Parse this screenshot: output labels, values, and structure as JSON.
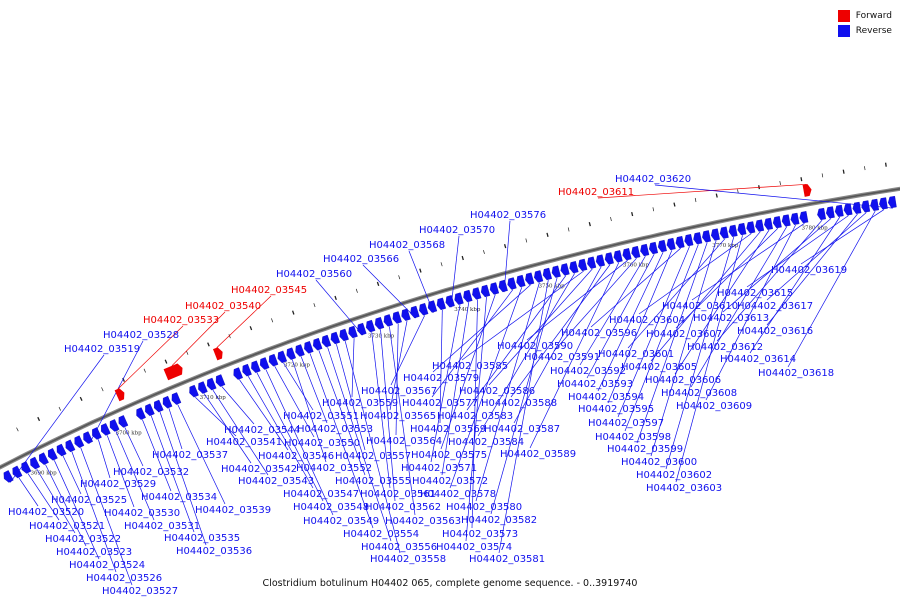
{
  "legend": {
    "forward_label": "Forward",
    "reverse_label": "Reverse",
    "forward_color": "#ee0000",
    "reverse_color": "#1010ee"
  },
  "caption": "Clostridium botulinum H04402 065, complete genome sequence. - 0..3919740",
  "genome": {
    "axis_tick_labels": [
      "3690 kbp",
      "3700 kbp",
      "3710 kbp",
      "3720 kbp",
      "3730 kbp",
      "3740 kbp",
      "3750 kbp",
      "3760 kbp",
      "3770 kbp",
      "3780 kbp"
    ]
  },
  "genes": [
    {
      "id": "H04402_03519",
      "strand": "reverse"
    },
    {
      "id": "H04402_03520",
      "strand": "reverse"
    },
    {
      "id": "H04402_03521",
      "strand": "reverse"
    },
    {
      "id": "H04402_03522",
      "strand": "reverse"
    },
    {
      "id": "H04402_03523",
      "strand": "reverse"
    },
    {
      "id": "H04402_03524",
      "strand": "reverse"
    },
    {
      "id": "H04402_03525",
      "strand": "reverse"
    },
    {
      "id": "H04402_03526",
      "strand": "reverse"
    },
    {
      "id": "H04402_03527",
      "strand": "reverse"
    },
    {
      "id": "H04402_03528",
      "strand": "reverse"
    },
    {
      "id": "H04402_03529",
      "strand": "reverse"
    },
    {
      "id": "H04402_03530",
      "strand": "reverse"
    },
    {
      "id": "H04402_03531",
      "strand": "reverse"
    },
    {
      "id": "H04402_03532",
      "strand": "reverse"
    },
    {
      "id": "H04402_03533",
      "strand": "forward"
    },
    {
      "id": "H04402_03534",
      "strand": "reverse"
    },
    {
      "id": "H04402_03535",
      "strand": "reverse"
    },
    {
      "id": "H04402_03536",
      "strand": "reverse"
    },
    {
      "id": "H04402_03537",
      "strand": "reverse"
    },
    {
      "id": "H04402_03539",
      "strand": "reverse"
    },
    {
      "id": "H04402_03540",
      "strand": "forward"
    },
    {
      "id": "H04402_03541",
      "strand": "reverse"
    },
    {
      "id": "H04402_03542",
      "strand": "reverse"
    },
    {
      "id": "H04402_03543",
      "strand": "reverse"
    },
    {
      "id": "H04402_03544",
      "strand": "reverse"
    },
    {
      "id": "H04402_03545",
      "strand": "forward"
    },
    {
      "id": "H04402_03546",
      "strand": "reverse"
    },
    {
      "id": "H04402_03547",
      "strand": "reverse"
    },
    {
      "id": "H04402_03548",
      "strand": "reverse"
    },
    {
      "id": "H04402_03549",
      "strand": "reverse"
    },
    {
      "id": "H04402_03550",
      "strand": "reverse"
    },
    {
      "id": "H04402_03551",
      "strand": "reverse"
    },
    {
      "id": "H04402_03552",
      "strand": "reverse"
    },
    {
      "id": "H04402_03553",
      "strand": "reverse"
    },
    {
      "id": "H04402_03554",
      "strand": "reverse"
    },
    {
      "id": "H04402_03555",
      "strand": "reverse"
    },
    {
      "id": "H04402_03556",
      "strand": "reverse"
    },
    {
      "id": "H04402_03557",
      "strand": "reverse"
    },
    {
      "id": "H04402_03558",
      "strand": "reverse"
    },
    {
      "id": "H04402_03559",
      "strand": "reverse"
    },
    {
      "id": "H04402_03560",
      "strand": "reverse"
    },
    {
      "id": "H04402_03561",
      "strand": "reverse"
    },
    {
      "id": "H04402_03562",
      "strand": "reverse"
    },
    {
      "id": "H04402_03563",
      "strand": "reverse"
    },
    {
      "id": "H04402_03564",
      "strand": "reverse"
    },
    {
      "id": "H04402_03565",
      "strand": "reverse"
    },
    {
      "id": "H04402_03566",
      "strand": "reverse"
    },
    {
      "id": "H04402_03567",
      "strand": "reverse"
    },
    {
      "id": "H04402_03568",
      "strand": "reverse"
    },
    {
      "id": "H04402_03569",
      "strand": "reverse"
    },
    {
      "id": "H04402_03570",
      "strand": "reverse"
    },
    {
      "id": "H04402_03571",
      "strand": "reverse"
    },
    {
      "id": "H04402_03572",
      "strand": "reverse"
    },
    {
      "id": "H04402_03573",
      "strand": "reverse"
    },
    {
      "id": "H04402_03574",
      "strand": "reverse"
    },
    {
      "id": "H04402_03575",
      "strand": "reverse"
    },
    {
      "id": "H04402_03576",
      "strand": "reverse"
    },
    {
      "id": "H04402_03577",
      "strand": "reverse"
    },
    {
      "id": "H04402_03578",
      "strand": "reverse"
    },
    {
      "id": "H04402_03579",
      "strand": "reverse"
    },
    {
      "id": "H04402_03580",
      "strand": "reverse"
    },
    {
      "id": "H04402_03581",
      "strand": "reverse"
    },
    {
      "id": "H04402_03582",
      "strand": "reverse"
    },
    {
      "id": "H04402_03583",
      "strand": "reverse"
    },
    {
      "id": "H04402_03584",
      "strand": "reverse"
    },
    {
      "id": "H04402_03585",
      "strand": "reverse"
    },
    {
      "id": "H04402_03586",
      "strand": "reverse"
    },
    {
      "id": "H04402_03587",
      "strand": "reverse"
    },
    {
      "id": "H04402_03588",
      "strand": "reverse"
    },
    {
      "id": "H04402_03589",
      "strand": "reverse"
    },
    {
      "id": "H04402_03590",
      "strand": "reverse"
    },
    {
      "id": "H04402_03591",
      "strand": "reverse"
    },
    {
      "id": "H04402_03592",
      "strand": "reverse"
    },
    {
      "id": "H04402_03593",
      "strand": "reverse"
    },
    {
      "id": "H04402_03594",
      "strand": "reverse"
    },
    {
      "id": "H04402_03595",
      "strand": "reverse"
    },
    {
      "id": "H04402_03596",
      "strand": "reverse"
    },
    {
      "id": "H04402_03597",
      "strand": "reverse"
    },
    {
      "id": "H04402_03598",
      "strand": "reverse"
    },
    {
      "id": "H04402_03599",
      "strand": "reverse"
    },
    {
      "id": "H04402_03600",
      "strand": "reverse"
    },
    {
      "id": "H04402_03601",
      "strand": "reverse"
    },
    {
      "id": "H04402_03602",
      "strand": "reverse"
    },
    {
      "id": "H04402_03603",
      "strand": "reverse"
    },
    {
      "id": "H04402_03604",
      "strand": "reverse"
    },
    {
      "id": "H04402_03605",
      "strand": "reverse"
    },
    {
      "id": "H04402_03606",
      "strand": "reverse"
    },
    {
      "id": "H04402_03607",
      "strand": "reverse"
    },
    {
      "id": "H04402_03608",
      "strand": "reverse"
    },
    {
      "id": "H04402_03609",
      "strand": "reverse"
    },
    {
      "id": "H04402_03610",
      "strand": "reverse"
    },
    {
      "id": "H04402_03611",
      "strand": "forward"
    },
    {
      "id": "H04402_03612",
      "strand": "reverse"
    },
    {
      "id": "H04402_03613",
      "strand": "reverse"
    },
    {
      "id": "H04402_03614",
      "strand": "reverse"
    },
    {
      "id": "H04402_03615",
      "strand": "reverse"
    },
    {
      "id": "H04402_03616",
      "strand": "reverse"
    },
    {
      "id": "H04402_03617",
      "strand": "reverse"
    },
    {
      "id": "H04402_03618",
      "strand": "reverse"
    },
    {
      "id": "H04402_03619",
      "strand": "reverse"
    },
    {
      "id": "H04402_03620",
      "strand": "reverse"
    }
  ]
}
